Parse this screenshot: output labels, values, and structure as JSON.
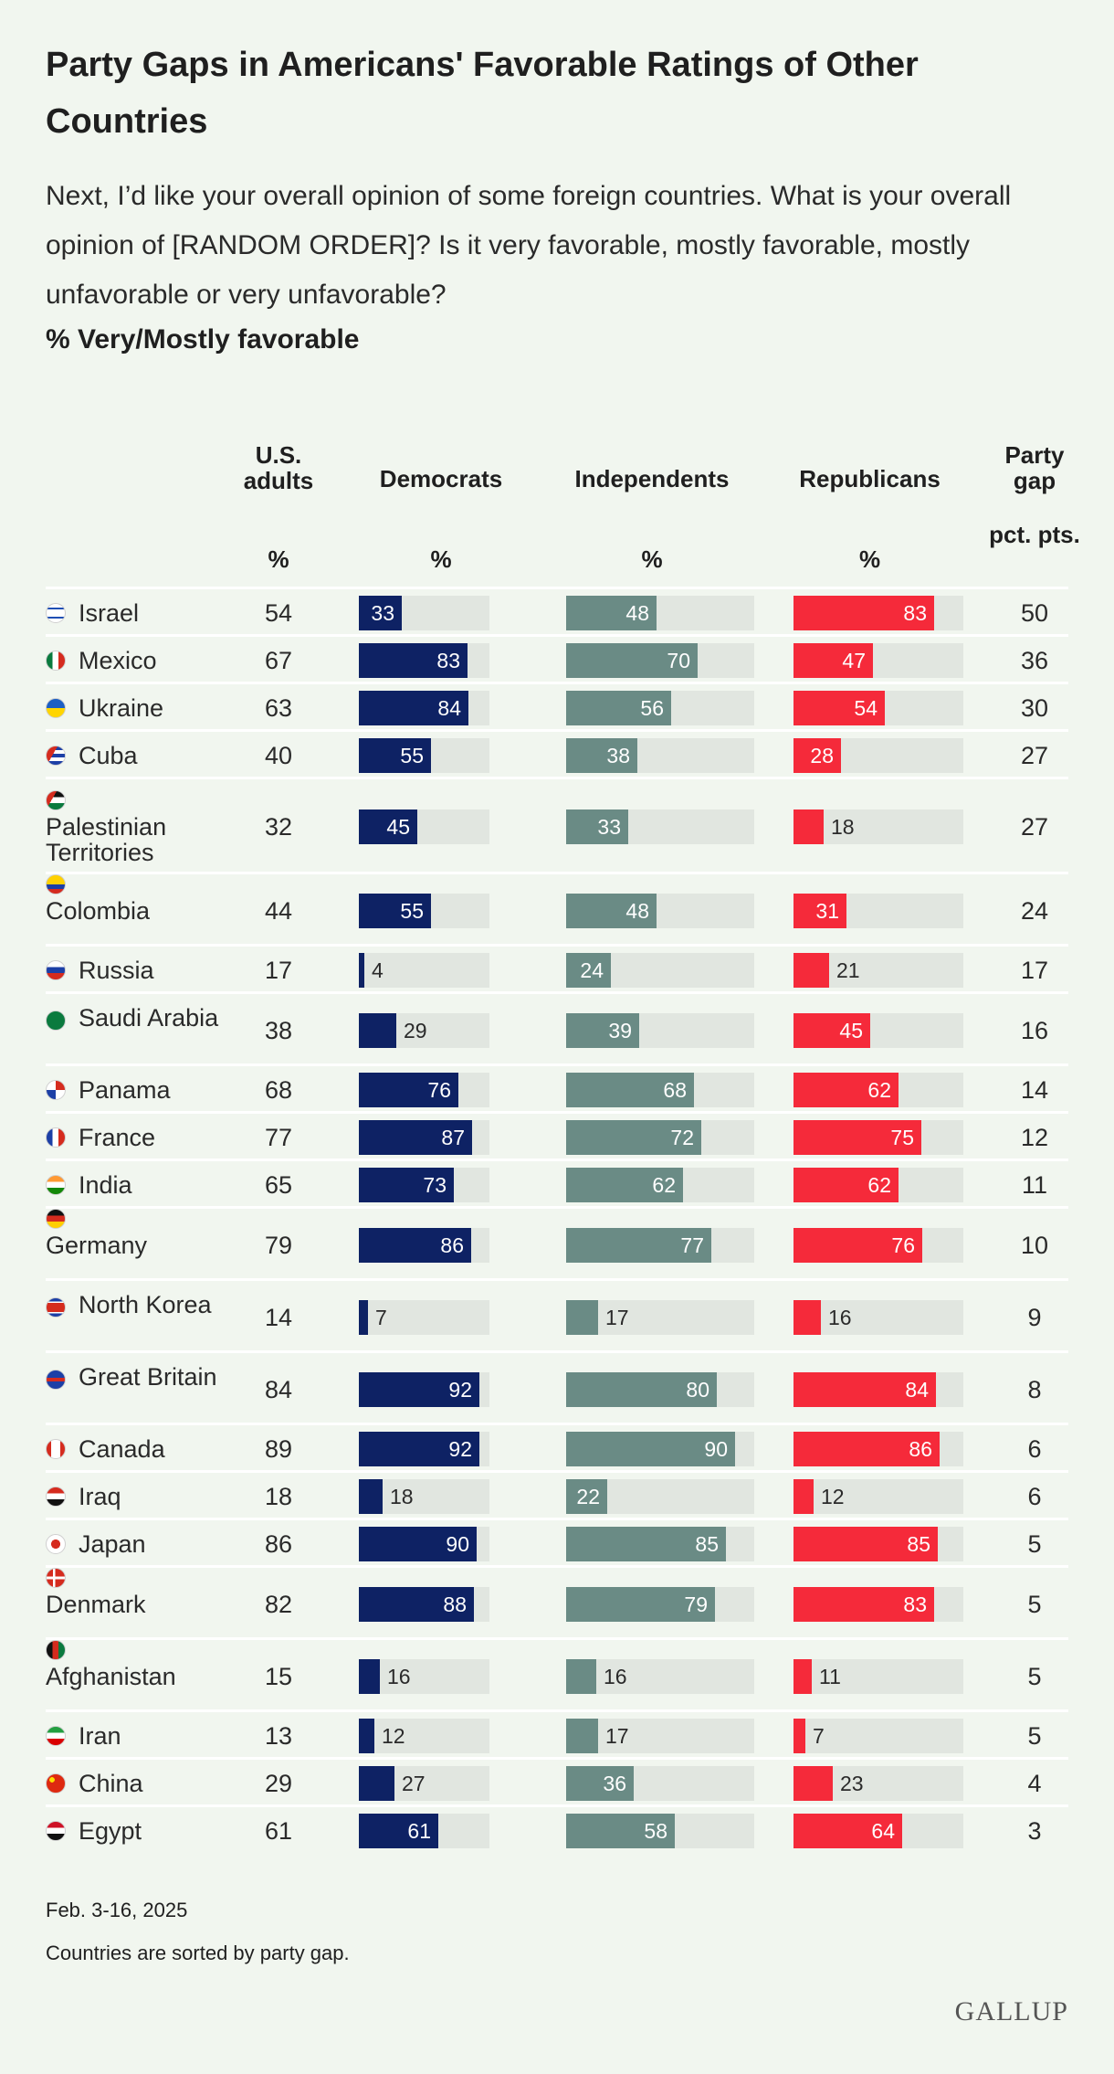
{
  "title": "Party Gaps in Americans' Favorable Ratings of Other Countries",
  "subtitle": "Next, I’d like your overall opinion of some foreign countries. What is your overall opinion of [RANDOM ORDER]? Is it very favorable, mostly favorable, mostly unfavorable or very unfavorable?",
  "metric_label": "% Very/Mostly favorable",
  "columns": {
    "adults": {
      "head": "U.S. adults",
      "unit": "%"
    },
    "dem": {
      "head": "Democrats",
      "unit": "%"
    },
    "ind": {
      "head": "Independents",
      "unit": "%"
    },
    "rep": {
      "head": "Republicans",
      "unit": "%"
    },
    "gap": {
      "head": "Party gap",
      "unit": "pct. pts."
    }
  },
  "colors": {
    "democrats": "#0e2264",
    "independents": "#6a8b85",
    "republicans": "#f52a3a",
    "track": "#e1e6e0",
    "background": "#f1f6ef"
  },
  "chart_data": {
    "type": "table",
    "title": "Party Gaps in Americans' Favorable Ratings of Other Countries",
    "value_range": [
      0,
      100
    ],
    "rows": [
      {
        "country": "Israel",
        "flag": "israel-flag-icon",
        "adults": 54,
        "dem": 33,
        "ind": 48,
        "rep": 83,
        "gap": 50
      },
      {
        "country": "Mexico",
        "flag": "mexico-flag-icon",
        "adults": 67,
        "dem": 83,
        "ind": 70,
        "rep": 47,
        "gap": 36
      },
      {
        "country": "Ukraine",
        "flag": "ukraine-flag-icon",
        "adults": 63,
        "dem": 84,
        "ind": 56,
        "rep": 54,
        "gap": 30
      },
      {
        "country": "Cuba",
        "flag": "cuba-flag-icon",
        "adults": 40,
        "dem": 55,
        "ind": 38,
        "rep": 28,
        "gap": 27
      },
      {
        "country": "Palestinian Territories",
        "flag": "palestine-flag-icon",
        "adults": 32,
        "dem": 45,
        "ind": 33,
        "rep": 18,
        "gap": 27
      },
      {
        "country": "Colombia",
        "flag": "colombia-flag-icon",
        "adults": 44,
        "dem": 55,
        "ind": 48,
        "rep": 31,
        "gap": 24
      },
      {
        "country": "Russia",
        "flag": "russia-flag-icon",
        "adults": 17,
        "dem": 4,
        "ind": 24,
        "rep": 21,
        "gap": 17
      },
      {
        "country": "Saudi Arabia",
        "flag": "saudi-arabia-flag-icon",
        "adults": 38,
        "dem": 29,
        "ind": 39,
        "rep": 45,
        "gap": 16
      },
      {
        "country": "Panama",
        "flag": "panama-flag-icon",
        "adults": 68,
        "dem": 76,
        "ind": 68,
        "rep": 62,
        "gap": 14
      },
      {
        "country": "France",
        "flag": "france-flag-icon",
        "adults": 77,
        "dem": 87,
        "ind": 72,
        "rep": 75,
        "gap": 12
      },
      {
        "country": "India",
        "flag": "india-flag-icon",
        "adults": 65,
        "dem": 73,
        "ind": 62,
        "rep": 62,
        "gap": 11
      },
      {
        "country": "Germany",
        "flag": "germany-flag-icon",
        "adults": 79,
        "dem": 86,
        "ind": 77,
        "rep": 76,
        "gap": 10
      },
      {
        "country": "North Korea",
        "flag": "north-korea-flag-icon",
        "adults": 14,
        "dem": 7,
        "ind": 17,
        "rep": 16,
        "gap": 9
      },
      {
        "country": "Great Britain",
        "flag": "great-britain-flag-icon",
        "adults": 84,
        "dem": 92,
        "ind": 80,
        "rep": 84,
        "gap": 8
      },
      {
        "country": "Canada",
        "flag": "canada-flag-icon",
        "adults": 89,
        "dem": 92,
        "ind": 90,
        "rep": 86,
        "gap": 6
      },
      {
        "country": "Iraq",
        "flag": "iraq-flag-icon",
        "adults": 18,
        "dem": 18,
        "ind": 22,
        "rep": 12,
        "gap": 6
      },
      {
        "country": "Japan",
        "flag": "japan-flag-icon",
        "adults": 86,
        "dem": 90,
        "ind": 85,
        "rep": 85,
        "gap": 5
      },
      {
        "country": "Denmark",
        "flag": "denmark-flag-icon",
        "adults": 82,
        "dem": 88,
        "ind": 79,
        "rep": 83,
        "gap": 5
      },
      {
        "country": "Afghanistan",
        "flag": "afghanistan-flag-icon",
        "adults": 15,
        "dem": 16,
        "ind": 16,
        "rep": 11,
        "gap": 5
      },
      {
        "country": "Iran",
        "flag": "iran-flag-icon",
        "adults": 13,
        "dem": 12,
        "ind": 17,
        "rep": 7,
        "gap": 5
      },
      {
        "country": "China",
        "flag": "china-flag-icon",
        "adults": 29,
        "dem": 27,
        "ind": 36,
        "rep": 23,
        "gap": 4
      },
      {
        "country": "Egypt",
        "flag": "egypt-flag-icon",
        "adults": 61,
        "dem": 61,
        "ind": 58,
        "rep": 64,
        "gap": 3
      }
    ]
  },
  "footer": {
    "date": "Feb. 3-16, 2025",
    "sort_note": "Countries are sorted by party gap.",
    "logo": "GALLUP"
  }
}
